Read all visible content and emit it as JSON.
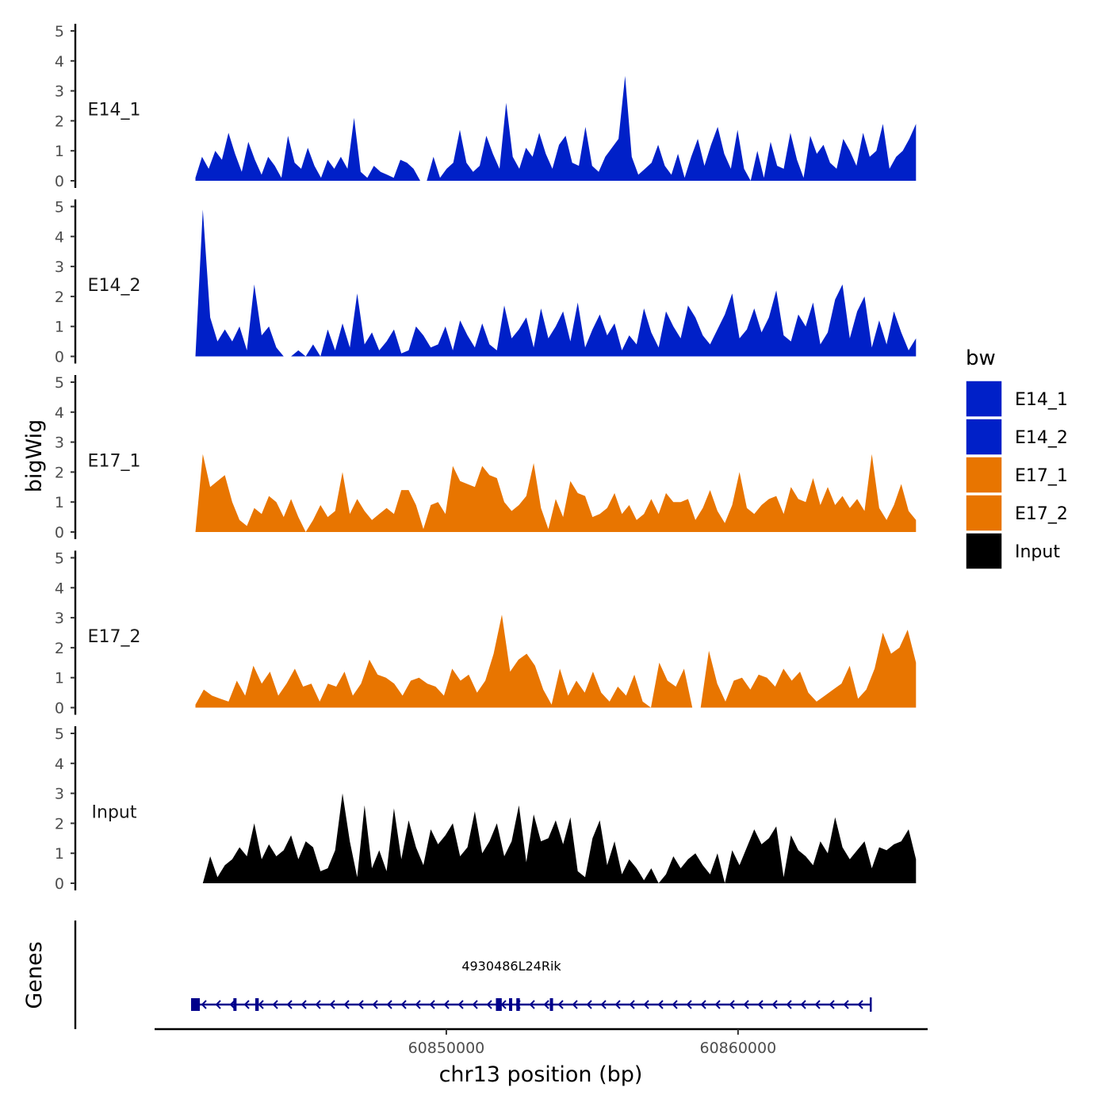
{
  "chart_data": {
    "type": "area",
    "xlabel": "chr13 position (bp)",
    "ylabel": "bigWig",
    "x_range": [
      60840000,
      60866500
    ],
    "x_ticks": [
      60850000,
      60860000
    ],
    "x_tick_labels": [
      "60850000",
      "60860000"
    ],
    "ylim": [
      0,
      5
    ],
    "y_ticks": [
      0,
      1,
      2,
      3,
      4,
      5
    ],
    "grid": false,
    "legend": {
      "title": "bw",
      "position": "right",
      "entries": [
        {
          "name": "E14_1",
          "color": "#0020c8"
        },
        {
          "name": "E14_2",
          "color": "#0020c8"
        },
        {
          "name": "E17_1",
          "color": "#e87500"
        },
        {
          "name": "E17_2",
          "color": "#e87500"
        },
        {
          "name": "Input",
          "color": "#000000"
        }
      ]
    },
    "x_start": 60841400,
    "x_step": 150,
    "series": [
      {
        "name": "E14_1",
        "color": "#0020c8",
        "values": [
          0.1,
          0.8,
          0.4,
          1.0,
          0.7,
          1.6,
          0.9,
          0.3,
          1.3,
          0.7,
          0.2,
          0.8,
          0.5,
          0.1,
          1.5,
          0.6,
          0.4,
          1.1,
          0.5,
          0.1,
          0.7,
          0.4,
          0.8,
          0.4,
          2.1,
          0.3,
          0.1,
          0.5,
          0.3,
          0.2,
          0.1,
          0.7,
          0.6,
          0.4,
          0.0,
          0.0,
          0.8,
          0.1,
          0.4,
          0.6,
          1.7,
          0.6,
          0.3,
          0.5,
          1.5,
          0.9,
          0.4,
          2.6,
          0.8,
          0.4,
          1.1,
          0.8,
          1.6,
          0.9,
          0.4,
          1.2,
          1.5,
          0.6,
          0.5,
          1.8,
          0.5,
          0.3,
          0.8,
          1.1,
          1.4,
          3.5,
          0.8,
          0.2,
          0.4,
          0.6,
          1.2,
          0.5,
          0.2,
          0.9,
          0.1,
          0.8,
          1.4,
          0.5,
          1.2,
          1.8,
          0.9,
          0.4,
          1.7,
          0.4,
          0.0,
          1.0,
          0.1,
          1.3,
          0.5,
          0.4,
          1.6,
          0.7,
          0.1,
          1.5,
          0.9,
          1.2,
          0.6,
          0.4,
          1.4,
          1.0,
          0.5,
          1.6,
          0.8,
          1.0,
          1.9,
          0.4,
          0.8,
          1.0,
          1.4,
          1.9
        ]
      },
      {
        "name": "E14_2",
        "color": "#0020c8",
        "values": [
          0.0,
          4.9,
          1.3,
          0.5,
          0.9,
          0.5,
          1.0,
          0.2,
          2.4,
          0.7,
          1.0,
          0.3,
          0.0,
          0.0,
          0.2,
          0.0,
          0.4,
          0.0,
          0.9,
          0.2,
          1.1,
          0.3,
          2.1,
          0.4,
          0.8,
          0.2,
          0.5,
          0.9,
          0.1,
          0.2,
          1.0,
          0.7,
          0.3,
          0.4,
          1.0,
          0.2,
          1.2,
          0.7,
          0.3,
          1.1,
          0.4,
          0.2,
          1.7,
          0.6,
          0.9,
          1.3,
          0.3,
          1.6,
          0.6,
          1.0,
          1.5,
          0.5,
          1.8,
          0.3,
          0.9,
          1.4,
          0.7,
          1.1,
          0.2,
          0.7,
          0.4,
          1.6,
          0.8,
          0.3,
          1.5,
          1.0,
          0.6,
          1.7,
          1.3,
          0.7,
          0.4,
          0.9,
          1.4,
          2.1,
          0.6,
          0.9,
          1.6,
          0.8,
          1.3,
          2.2,
          0.7,
          0.5,
          1.4,
          1.0,
          1.8,
          0.4,
          0.8,
          1.9,
          2.4,
          0.6,
          1.5,
          2.0,
          0.3,
          1.2,
          0.4,
          1.5,
          0.8,
          0.2,
          0.6
        ]
      },
      {
        "name": "E17_1",
        "color": "#e87500",
        "values": [
          0.0,
          2.6,
          1.5,
          1.7,
          1.9,
          1.0,
          0.4,
          0.2,
          0.8,
          0.6,
          1.2,
          1.0,
          0.5,
          1.1,
          0.5,
          0.0,
          0.4,
          0.9,
          0.5,
          0.7,
          2.0,
          0.6,
          1.1,
          0.7,
          0.4,
          0.6,
          0.8,
          0.6,
          1.4,
          1.4,
          0.9,
          0.1,
          0.9,
          1.0,
          0.6,
          2.2,
          1.7,
          1.6,
          1.5,
          2.2,
          1.9,
          1.8,
          1.0,
          0.7,
          0.9,
          1.2,
          2.3,
          0.8,
          0.1,
          1.1,
          0.5,
          1.7,
          1.3,
          1.2,
          0.5,
          0.6,
          0.8,
          1.3,
          0.6,
          0.9,
          0.4,
          0.6,
          1.1,
          0.6,
          1.3,
          1.0,
          1.0,
          1.1,
          0.4,
          0.8,
          1.4,
          0.7,
          0.3,
          0.9,
          2.0,
          0.8,
          0.6,
          0.9,
          1.1,
          1.2,
          0.6,
          1.5,
          1.1,
          1.0,
          1.8,
          0.9,
          1.5,
          0.9,
          1.2,
          0.8,
          1.1,
          0.7,
          2.6,
          0.8,
          0.4,
          0.9,
          1.6,
          0.7,
          0.4
        ]
      },
      {
        "name": "E17_2",
        "color": "#e87500",
        "values": [
          0.1,
          0.6,
          0.4,
          0.3,
          0.2,
          0.9,
          0.4,
          1.4,
          0.8,
          1.2,
          0.4,
          0.8,
          1.3,
          0.7,
          0.8,
          0.2,
          0.8,
          0.7,
          1.2,
          0.4,
          0.8,
          1.6,
          1.1,
          1.0,
          0.8,
          0.4,
          0.9,
          1.0,
          0.8,
          0.7,
          0.4,
          1.3,
          0.9,
          1.1,
          0.5,
          0.9,
          1.8,
          3.1,
          1.2,
          1.6,
          1.8,
          1.4,
          0.6,
          0.1,
          1.3,
          0.4,
          0.9,
          0.5,
          1.2,
          0.5,
          0.2,
          0.7,
          0.4,
          1.1,
          0.2,
          0.0,
          1.5,
          0.9,
          0.7,
          1.3,
          0.0,
          0.0,
          1.9,
          0.8,
          0.2,
          0.9,
          1.0,
          0.6,
          1.1,
          1.0,
          0.7,
          1.3,
          0.9,
          1.2,
          0.5,
          0.2,
          0.4,
          0.6,
          0.8,
          1.4,
          0.3,
          0.6,
          1.3,
          2.5,
          1.8,
          2.0,
          2.6,
          1.5
        ]
      },
      {
        "name": "Input",
        "color": "#000000",
        "values": [
          0.0,
          0.0,
          0.9,
          0.2,
          0.6,
          0.8,
          1.2,
          0.9,
          2.0,
          0.8,
          1.3,
          0.9,
          1.1,
          1.6,
          0.8,
          1.4,
          1.2,
          0.4,
          0.5,
          1.1,
          3.0,
          1.4,
          0.2,
          2.6,
          0.5,
          1.1,
          0.4,
          2.5,
          0.8,
          2.1,
          1.2,
          0.6,
          1.8,
          1.3,
          1.6,
          2.0,
          0.9,
          1.2,
          2.4,
          1.0,
          1.4,
          2.0,
          0.9,
          1.4,
          2.6,
          0.7,
          2.3,
          1.4,
          1.5,
          2.1,
          1.3,
          2.2,
          0.4,
          0.2,
          1.5,
          2.1,
          0.6,
          1.4,
          0.3,
          0.8,
          0.5,
          0.1,
          0.5,
          0.0,
          0.3,
          0.9,
          0.5,
          0.8,
          1.0,
          0.6,
          0.3,
          1.0,
          0.0,
          1.1,
          0.6,
          1.2,
          1.8,
          1.3,
          1.5,
          1.9,
          0.2,
          1.6,
          1.1,
          0.9,
          0.6,
          1.4,
          1.0,
          2.2,
          1.2,
          0.8,
          1.1,
          1.4,
          0.5,
          1.2,
          1.1,
          1.3,
          1.4,
          1.8,
          0.8
        ]
      }
    ],
    "gene": {
      "name": "4930486L24Rik",
      "strand": "-",
      "start": 60841250,
      "end": 60864550,
      "exons": [
        [
          60841250,
          60841550
        ],
        [
          60842700,
          60842780
        ],
        [
          60843450,
          60843570
        ],
        [
          60851700,
          60851900
        ],
        [
          60852150,
          60852250
        ],
        [
          60852400,
          60852520
        ],
        [
          60853550,
          60853650
        ]
      ]
    }
  },
  "genes_track_title": "Genes"
}
